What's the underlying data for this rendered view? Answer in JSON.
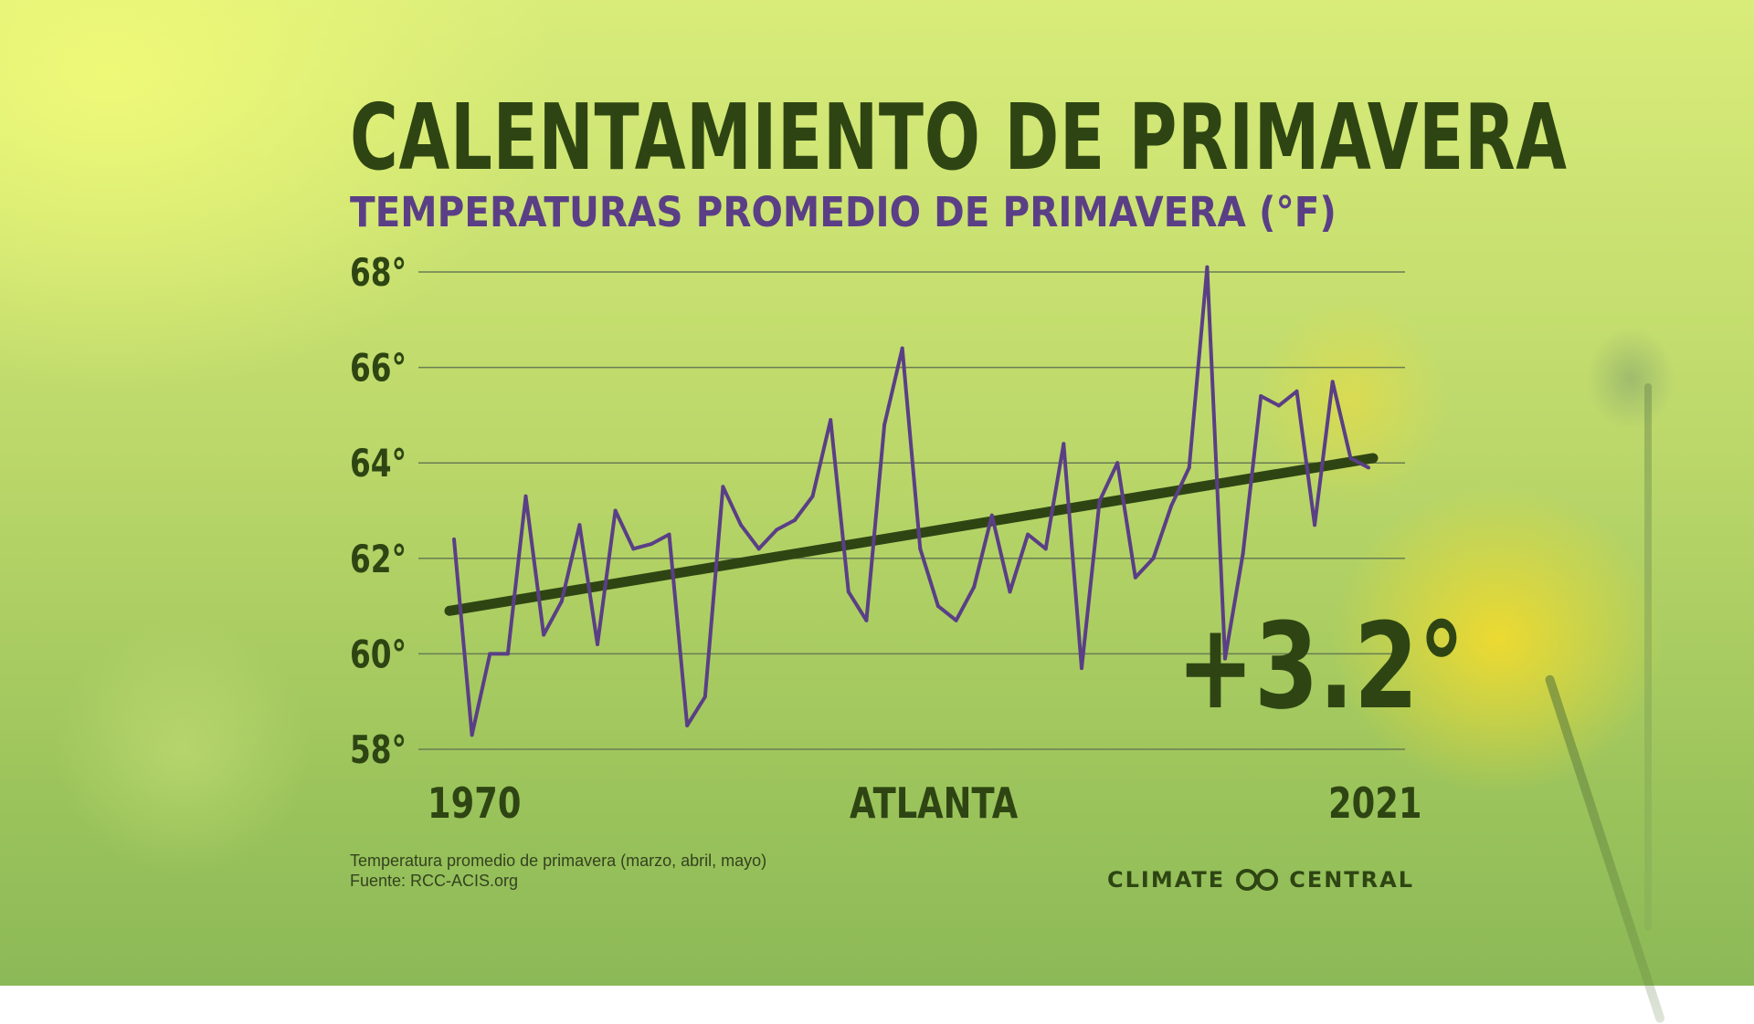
{
  "title": "CALENTAMIENTO DE PRIMAVERA",
  "subtitle": "TEMPERATURAS PROMEDIO DE PRIMAVERA (°F)",
  "location": "ATLANTA",
  "change_label": "+3.2°",
  "footnote": "Temperatura promedio de primavera (marzo, abril, mayo)",
  "source": "Fuente: RCC-ACIS.org",
  "brand_left": "CLIMATE",
  "brand_right": "CENTRAL",
  "colors": {
    "title": "#2e4513",
    "subtitle": "#5a3f86",
    "series_line": "#5a3f86",
    "trend_line": "#2e4513",
    "grid": "#6a7d52"
  },
  "chart_data": {
    "type": "line",
    "x_start_label": "1970",
    "x_end_label": "2021",
    "xlim": [
      1970,
      2021
    ],
    "ylim": [
      58,
      68
    ],
    "yticks": [
      68,
      66,
      64,
      62,
      60,
      58
    ],
    "ytick_labels": [
      "68°",
      "66°",
      "64°",
      "62°",
      "60°",
      "58°"
    ],
    "grid": true,
    "series": [
      {
        "x": [
          1970,
          1971,
          1972,
          1973,
          1974,
          1975,
          1976,
          1977,
          1978,
          1979,
          1980,
          1981,
          1982,
          1983,
          1984,
          1985,
          1986,
          1987,
          1988,
          1989,
          1990,
          1991,
          1992,
          1993,
          1994,
          1995,
          1996,
          1997,
          1998,
          1999,
          2000,
          2001,
          2002,
          2003,
          2004,
          2005,
          2006,
          2007,
          2008,
          2009,
          2010,
          2011,
          2012,
          2013,
          2014,
          2015,
          2016,
          2017,
          2018,
          2019,
          2020,
          2021
        ],
        "values": [
          62.4,
          58.3,
          60.0,
          60.0,
          63.3,
          60.4,
          61.1,
          62.7,
          60.2,
          63.0,
          62.2,
          62.3,
          62.5,
          58.5,
          59.1,
          63.5,
          62.7,
          62.2,
          62.6,
          62.8,
          63.3,
          64.9,
          61.3,
          60.7,
          64.8,
          66.4,
          62.2,
          61.0,
          60.7,
          61.4,
          62.9,
          61.3,
          62.5,
          62.2,
          64.4,
          59.7,
          63.2,
          64.0,
          61.6,
          62.0,
          63.1,
          63.9,
          68.1,
          59.9,
          62.1,
          65.4,
          65.2,
          65.5,
          62.7,
          65.7,
          64.1,
          63.9
        ]
      },
      {
        "trend_start": 60.9,
        "trend_end": 64.1
      }
    ]
  }
}
